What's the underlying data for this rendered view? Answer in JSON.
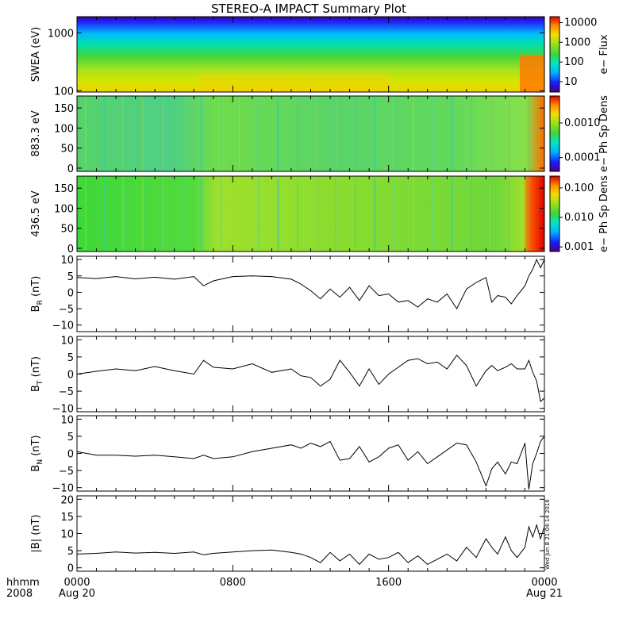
{
  "title": "STEREO-A IMPACT Summary Plot",
  "time_axis": {
    "row1_label": "hhmm",
    "row2_label": "2008",
    "ticks": [
      {
        "time": "0000",
        "date": "Aug 20",
        "hour": 0
      },
      {
        "time": "0800",
        "date": "",
        "hour": 8
      },
      {
        "time": "1600",
        "date": "",
        "hour": 16
      },
      {
        "time": "0000",
        "date": "Aug 21",
        "hour": 24
      }
    ]
  },
  "timestamp": "Wed Jun 8 21:04:14 2016",
  "colors": {
    "axis": "#000000",
    "line": "#000000",
    "background": "#ffffff"
  },
  "chart_data": [
    {
      "type": "heatmap",
      "ylabel": "SWEA (eV)",
      "yscale": "log",
      "ylim": [
        95,
        1900
      ],
      "yticks": [
        {
          "v": 100,
          "label": "100"
        },
        {
          "v": 1000,
          "label": "1000"
        }
      ],
      "colorbar": {
        "label": "e− Flux",
        "scale": "log",
        "range": [
          3,
          20000
        ],
        "ticks": [
          {
            "v": 10,
            "label": "10"
          },
          {
            "v": 100,
            "label": "100"
          },
          {
            "v": 1000,
            "label": "1000"
          },
          {
            "v": 10000,
            "label": "10000"
          }
        ]
      }
    },
    {
      "type": "heatmap",
      "ylabel": "883.3 eV",
      "ylim": [
        -8,
        180
      ],
      "yticks": [
        {
          "v": 0,
          "label": "0"
        },
        {
          "v": 50,
          "label": "50"
        },
        {
          "v": 100,
          "label": "100"
        },
        {
          "v": 150,
          "label": "150"
        }
      ],
      "colorbar": {
        "label": "e− Ph Sp Dens",
        "scale": "log",
        "range": [
          4e-05,
          0.006
        ],
        "ticks": [
          {
            "v": 0.0001,
            "label": "0.0001"
          },
          {
            "v": 0.001,
            "label": "0.0010"
          }
        ]
      }
    },
    {
      "type": "heatmap",
      "ylabel": "436.5 eV",
      "ylim": [
        -8,
        180
      ],
      "yticks": [
        {
          "v": 0,
          "label": "0"
        },
        {
          "v": 50,
          "label": "50"
        },
        {
          "v": 100,
          "label": "100"
        },
        {
          "v": 150,
          "label": "150"
        }
      ],
      "colorbar": {
        "label": "e− Ph Sp Dens",
        "scale": "log",
        "range": [
          0.0007,
          0.25
        ],
        "ticks": [
          {
            "v": 0.001,
            "label": "0.001"
          },
          {
            "v": 0.01,
            "label": "0.010"
          },
          {
            "v": 0.1,
            "label": "0.100"
          }
        ]
      }
    },
    {
      "type": "line",
      "ylabel_main": "B",
      "ylabel_sub": "R",
      "ylabel_unit": " (nT)",
      "ylim": [
        -12,
        11
      ],
      "yticks": [
        {
          "v": -10,
          "label": "−10"
        },
        {
          "v": -5,
          "label": "−5"
        },
        {
          "v": 0,
          "label": "0"
        },
        {
          "v": 5,
          "label": "5"
        },
        {
          "v": 10,
          "label": "10"
        }
      ],
      "x": [
        0,
        1,
        2,
        3,
        4,
        5,
        6,
        6.5,
        7,
        8,
        9,
        10,
        11,
        11.5,
        12,
        12.5,
        13,
        13.5,
        14,
        14.5,
        15,
        15.5,
        16,
        16.5,
        17,
        17.5,
        18,
        18.5,
        19,
        19.5,
        20,
        20.5,
        21,
        21.3,
        21.6,
        22,
        22.3,
        22.6,
        23,
        23.2,
        23.4,
        23.6,
        23.8,
        24
      ],
      "y": [
        4.5,
        4.2,
        4.8,
        4.1,
        4.6,
        4.0,
        4.8,
        2.0,
        3.5,
        4.8,
        5.0,
        4.8,
        4.0,
        2.5,
        0.5,
        -2.0,
        1.0,
        -1.5,
        1.5,
        -2.5,
        2.0,
        -1.0,
        -0.5,
        -3.0,
        -2.5,
        -4.5,
        -2.0,
        -3.0,
        -0.5,
        -5.0,
        1.0,
        3.0,
        4.5,
        -3.0,
        -1.0,
        -1.5,
        -3.5,
        -1.0,
        2.0,
        5.0,
        7.0,
        10.0,
        7.5,
        10.0
      ]
    },
    {
      "type": "line",
      "ylabel_main": "B",
      "ylabel_sub": "T",
      "ylabel_unit": " (nT)",
      "ylim": [
        -11,
        11
      ],
      "yticks": [
        {
          "v": -10,
          "label": "−10"
        },
        {
          "v": -5,
          "label": "−5"
        },
        {
          "v": 0,
          "label": "0"
        },
        {
          "v": 5,
          "label": "5"
        },
        {
          "v": 10,
          "label": "10"
        }
      ],
      "x": [
        0,
        1,
        2,
        3,
        4,
        5,
        6,
        6.5,
        7,
        8,
        9,
        10,
        11,
        11.5,
        12,
        12.5,
        13,
        13.5,
        14,
        14.5,
        15,
        15.5,
        16,
        16.5,
        17,
        17.5,
        18,
        18.5,
        19,
        19.5,
        20,
        20.5,
        21,
        21.3,
        21.6,
        22,
        22.3,
        22.6,
        23,
        23.2,
        23.4,
        23.6,
        23.8,
        24
      ],
      "y": [
        0.0,
        0.8,
        1.5,
        1.0,
        2.2,
        1.0,
        0.0,
        4.0,
        2.0,
        1.5,
        3.0,
        0.5,
        1.5,
        -0.5,
        -1.0,
        -3.5,
        -1.5,
        4.0,
        0.5,
        -3.5,
        1.5,
        -3.0,
        0.0,
        2.0,
        4.0,
        4.5,
        3.0,
        3.5,
        1.5,
        5.5,
        2.5,
        -3.5,
        1.0,
        2.5,
        1.0,
        2.0,
        3.0,
        1.5,
        1.5,
        4.0,
        0.5,
        -2.0,
        -8.0,
        -7.0
      ]
    },
    {
      "type": "line",
      "ylabel_main": "B",
      "ylabel_sub": "N",
      "ylabel_unit": " (nT)",
      "ylim": [
        -11,
        11
      ],
      "yticks": [
        {
          "v": -10,
          "label": "−10"
        },
        {
          "v": -5,
          "label": "−5"
        },
        {
          "v": 0,
          "label": "0"
        },
        {
          "v": 5,
          "label": "5"
        },
        {
          "v": 10,
          "label": "10"
        }
      ],
      "x": [
        0,
        1,
        2,
        3,
        4,
        5,
        6,
        6.5,
        7,
        8,
        9,
        10,
        11,
        11.5,
        12,
        12.5,
        13,
        13.5,
        14,
        14.5,
        15,
        15.5,
        16,
        16.5,
        17,
        17.5,
        18,
        18.5,
        19,
        19.5,
        20,
        20.5,
        21,
        21.3,
        21.6,
        22,
        22.3,
        22.6,
        23,
        23.2,
        23.4,
        23.6,
        23.8,
        24
      ],
      "y": [
        0.5,
        -0.5,
        -0.5,
        -0.8,
        -0.5,
        -1.0,
        -1.5,
        -0.5,
        -1.5,
        -1.0,
        0.5,
        1.5,
        2.5,
        1.5,
        3.0,
        2.0,
        3.5,
        -2.0,
        -1.5,
        2.0,
        -2.5,
        -1.0,
        1.5,
        2.5,
        -2.0,
        0.5,
        -3.0,
        -1.0,
        1.0,
        3.0,
        2.5,
        -2.5,
        -9.5,
        -4.5,
        -2.5,
        -6.0,
        -2.5,
        -3.0,
        3.0,
        -10.5,
        -3.0,
        0.0,
        3.5,
        5.0
      ]
    },
    {
      "type": "line",
      "ylabel_main": "|B|",
      "ylabel_sub": "",
      "ylabel_unit": " (nT)",
      "ylim": [
        -1,
        21
      ],
      "yticks": [
        {
          "v": 0,
          "label": "0"
        },
        {
          "v": 5,
          "label": "5"
        },
        {
          "v": 10,
          "label": "10"
        },
        {
          "v": 15,
          "label": "15"
        },
        {
          "v": 20,
          "label": "20"
        }
      ],
      "x": [
        0,
        1,
        2,
        3,
        4,
        5,
        6,
        6.5,
        7,
        8,
        9,
        10,
        11,
        11.5,
        12,
        12.5,
        13,
        13.5,
        14,
        14.5,
        15,
        15.5,
        16,
        16.5,
        17,
        17.5,
        18,
        18.5,
        19,
        19.5,
        20,
        20.5,
        21,
        21.3,
        21.6,
        22,
        22.3,
        22.6,
        23,
        23.2,
        23.4,
        23.6,
        23.8,
        24
      ],
      "y": [
        4.0,
        4.2,
        4.6,
        4.3,
        4.5,
        4.2,
        4.6,
        3.8,
        4.2,
        4.6,
        5.0,
        5.2,
        4.5,
        4.0,
        3.0,
        1.5,
        4.5,
        2.0,
        4.0,
        1.0,
        4.0,
        2.5,
        3.0,
        4.5,
        1.5,
        3.5,
        1.0,
        2.5,
        4.0,
        2.0,
        6.0,
        3.0,
        8.5,
        6.0,
        4.0,
        9.0,
        5.0,
        3.0,
        6.0,
        12.0,
        9.0,
        12.5,
        8.5,
        12.0
      ]
    }
  ]
}
